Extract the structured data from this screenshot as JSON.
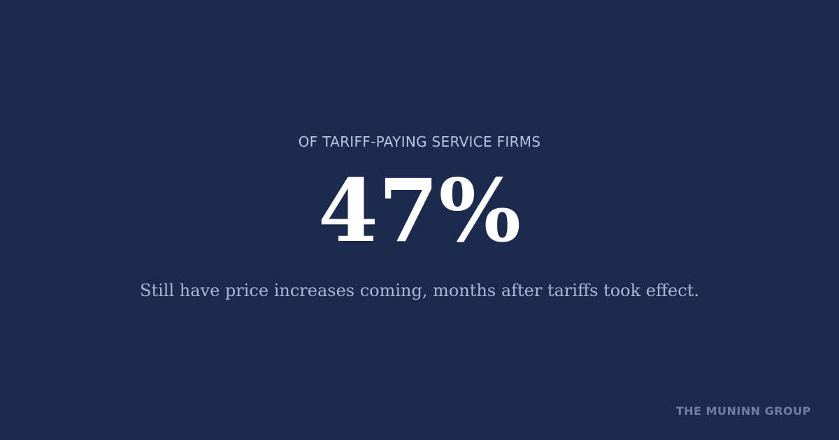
{
  "kicker": "OF TARIFF-PAYING SERVICE FIRMS",
  "stat": "47%",
  "description": "Still have price increases coming, months after tariffs took effect.",
  "brand": "THE MUNINN GROUP"
}
